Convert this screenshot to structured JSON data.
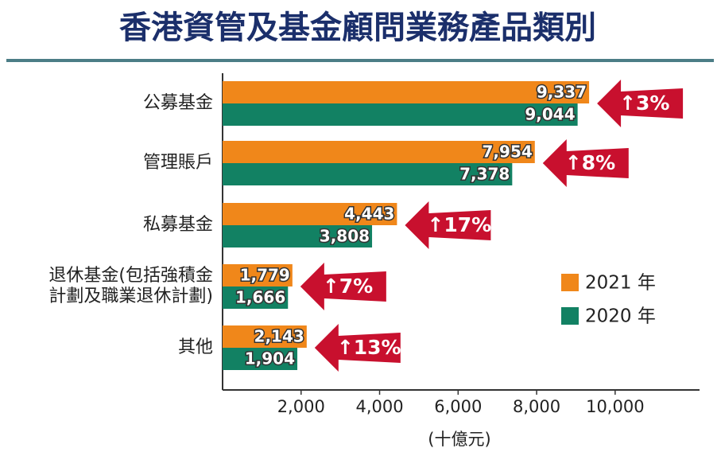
{
  "chart_data": {
    "type": "bar",
    "orientation": "horizontal",
    "title": "香港資管及基金顧問業務產品類別",
    "x_label": "(十億元)",
    "categories": [
      "公募基金",
      "管理賬戶",
      "私募基金",
      "退休基金(包括強積金\n計劃及職業退休計劃)",
      "其他"
    ],
    "series": [
      {
        "name": "2021 年",
        "color": "#f0871a",
        "values": [
          9337,
          7954,
          4443,
          1779,
          2143
        ],
        "value_labels": [
          "9,337",
          "7,954",
          "4,443",
          "1,779",
          "2,143"
        ]
      },
      {
        "name": "2020 年",
        "color": "#128163",
        "values": [
          9044,
          7378,
          3808,
          1666,
          1904
        ],
        "value_labels": [
          "9,044",
          "7,378",
          "3,808",
          "1,666",
          "1,904"
        ]
      }
    ],
    "annotations": [
      "↑3%",
      "↑8%",
      "↑17%",
      "↑7%",
      "↑13%"
    ],
    "annotation_color": "#c8102e",
    "xlim": [
      0,
      12150
    ],
    "xticks": [
      {
        "value": 2000,
        "label": "2,000"
      },
      {
        "value": 4000,
        "label": "4,000"
      },
      {
        "value": 6000,
        "label": "6,000"
      },
      {
        "value": 8000,
        "label": "8,000"
      },
      {
        "value": 10000,
        "label": "10,000"
      }
    ],
    "legend": "right"
  }
}
